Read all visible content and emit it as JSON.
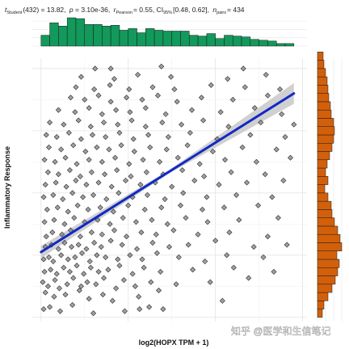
{
  "stats": {
    "t_label": "t",
    "t_sub": "Student",
    "t_value": "(432) = 13.82,",
    "p_label": "p",
    "p_value": "= 3.10e-36,",
    "r_label": "r",
    "r_sub": "Pearson",
    "r_value": "= 0.55, CI",
    "ci_sub": "95%",
    "ci_value": "[0.48, 0.62],",
    "n_label": "n",
    "n_sub": "pairs",
    "n_value": "= 434"
  },
  "watermark": "知乎 @医学和生信笔记",
  "chart_data": {
    "type": "scatter",
    "xlabel": "log2(HOPX TPM + 1)",
    "ylabel": "Inflammatory Response",
    "xlim": [
      -0.1,
      3.05
    ],
    "ylim": [
      -0.62,
      0.65
    ],
    "xticks": [
      "0",
      "1",
      "2",
      "3"
    ],
    "yticks": [
      "-0.6",
      "-0.3",
      "0.0",
      "0.3",
      "0.6"
    ],
    "ytick_values": [
      -0.6,
      -0.3,
      0.0,
      0.3,
      0.6
    ],
    "grid": true,
    "point_color": "#808080",
    "regression": {
      "color": "#1328c4",
      "band_color": "#c8c8c8",
      "x": [
        0.0,
        2.9
      ],
      "y": [
        -0.285,
        0.48
      ],
      "band_half_width": [
        0.03,
        0.008,
        0.05
      ]
    },
    "marginal_x": {
      "type": "histogram",
      "color": "#12995b",
      "yticks": [
        "0",
        "10",
        "20",
        "30"
      ],
      "ytick_values": [
        0,
        10,
        20,
        30
      ],
      "bin_start": 0.0,
      "bin_width": 0.1,
      "counts": [
        13,
        28,
        24,
        34,
        33,
        26,
        26,
        24,
        25,
        19,
        21,
        16,
        21,
        19,
        18,
        18,
        18,
        13,
        12,
        15,
        9,
        13,
        12,
        11,
        8,
        7,
        6,
        3,
        3
      ]
    },
    "marginal_y": {
      "type": "histogram",
      "color": "#d2600b",
      "xticks": [
        "0",
        "10",
        "20",
        "30"
      ],
      "xtick_values": [
        0,
        10,
        20,
        30
      ],
      "bin_start": -0.6,
      "bin_width": 0.04,
      "counts": [
        6,
        8,
        13,
        18,
        22,
        25,
        27,
        24,
        30,
        28,
        25,
        21,
        18,
        17,
        13,
        9,
        13,
        10,
        12,
        15,
        18,
        20,
        21,
        20,
        17,
        16,
        14,
        13,
        12,
        10,
        8,
        7
      ]
    },
    "points": [
      [
        0.03,
        -0.56
      ],
      [
        0.1,
        -0.55
      ],
      [
        0.22,
        -0.57
      ],
      [
        0.36,
        -0.54
      ],
      [
        0.6,
        -0.58
      ],
      [
        0.96,
        -0.57
      ],
      [
        1.13,
        -0.56
      ],
      [
        1.24,
        -0.55
      ],
      [
        1.4,
        -0.56
      ],
      [
        0.05,
        -0.48
      ],
      [
        0.15,
        -0.5
      ],
      [
        0.28,
        -0.49
      ],
      [
        0.44,
        -0.47
      ],
      [
        0.55,
        -0.51
      ],
      [
        0.71,
        -0.49
      ],
      [
        0.82,
        -0.52
      ],
      [
        1.12,
        -0.5
      ],
      [
        1.35,
        -0.47
      ],
      [
        2.08,
        -0.52
      ],
      [
        0.02,
        -0.43
      ],
      [
        0.08,
        -0.45
      ],
      [
        0.16,
        -0.42
      ],
      [
        0.21,
        -0.46
      ],
      [
        0.3,
        -0.44
      ],
      [
        0.37,
        -0.41
      ],
      [
        0.46,
        -0.45
      ],
      [
        0.53,
        -0.43
      ],
      [
        0.63,
        -0.44
      ],
      [
        0.72,
        -0.41
      ],
      [
        0.86,
        -0.46
      ],
      [
        0.95,
        -0.42
      ],
      [
        1.08,
        -0.45
      ],
      [
        1.26,
        -0.43
      ],
      [
        1.55,
        -0.44
      ],
      [
        1.94,
        -0.43
      ],
      [
        2.38,
        -0.41
      ],
      [
        0.04,
        -0.38
      ],
      [
        0.11,
        -0.37
      ],
      [
        0.18,
        -0.39
      ],
      [
        0.26,
        -0.36
      ],
      [
        0.33,
        -0.38
      ],
      [
        0.41,
        -0.35
      ],
      [
        0.49,
        -0.39
      ],
      [
        0.57,
        -0.36
      ],
      [
        0.66,
        -0.38
      ],
      [
        0.77,
        -0.37
      ],
      [
        0.9,
        -0.35
      ],
      [
        1.05,
        -0.39
      ],
      [
        1.18,
        -0.36
      ],
      [
        1.37,
        -0.38
      ],
      [
        1.74,
        -0.37
      ],
      [
        2.21,
        -0.36
      ],
      [
        2.67,
        -0.38
      ],
      [
        0.03,
        -0.32
      ],
      [
        0.09,
        -0.31
      ],
      [
        0.14,
        -0.33
      ],
      [
        0.23,
        -0.3
      ],
      [
        0.31,
        -0.32
      ],
      [
        0.39,
        -0.31
      ],
      [
        0.47,
        -0.29
      ],
      [
        0.56,
        -0.33
      ],
      [
        0.64,
        -0.3
      ],
      [
        0.74,
        -0.31
      ],
      [
        0.88,
        -0.32
      ],
      [
        1.02,
        -0.3
      ],
      [
        1.16,
        -0.32
      ],
      [
        1.33,
        -0.29
      ],
      [
        1.58,
        -0.31
      ],
      [
        1.88,
        -0.33
      ],
      [
        2.13,
        -0.3
      ],
      [
        2.55,
        -0.31
      ],
      [
        0.05,
        -0.26
      ],
      [
        0.12,
        -0.25
      ],
      [
        0.2,
        -0.27
      ],
      [
        0.27,
        -0.24
      ],
      [
        0.35,
        -0.26
      ],
      [
        0.43,
        -0.25
      ],
      [
        0.52,
        -0.27
      ],
      [
        0.61,
        -0.24
      ],
      [
        0.69,
        -0.26
      ],
      [
        0.8,
        -0.23
      ],
      [
        0.93,
        -0.25
      ],
      [
        1.1,
        -0.27
      ],
      [
        1.28,
        -0.24
      ],
      [
        1.47,
        -0.26
      ],
      [
        1.69,
        -0.25
      ],
      [
        2.0,
        -0.23
      ],
      [
        2.44,
        -0.26
      ],
      [
        2.82,
        -0.25
      ],
      [
        0.06,
        -0.21
      ],
      [
        0.13,
        -0.19
      ],
      [
        0.24,
        -0.2
      ],
      [
        0.34,
        -0.18
      ],
      [
        0.45,
        -0.21
      ],
      [
        0.58,
        -0.19
      ],
      [
        0.7,
        -0.2
      ],
      [
        0.84,
        -0.18
      ],
      [
        0.98,
        -0.21
      ],
      [
        1.15,
        -0.19
      ],
      [
        1.32,
        -0.2
      ],
      [
        1.52,
        -0.18
      ],
      [
        1.8,
        -0.2
      ],
      [
        2.16,
        -0.19
      ],
      [
        2.6,
        -0.21
      ],
      [
        0.04,
        -0.14
      ],
      [
        0.15,
        -0.13
      ],
      [
        0.27,
        -0.15
      ],
      [
        0.38,
        -0.12
      ],
      [
        0.5,
        -0.14
      ],
      [
        0.65,
        -0.13
      ],
      [
        0.79,
        -0.15
      ],
      [
        0.94,
        -0.12
      ],
      [
        1.09,
        -0.14
      ],
      [
        1.27,
        -0.13
      ],
      [
        1.45,
        -0.15
      ],
      [
        1.66,
        -0.12
      ],
      [
        1.91,
        -0.14
      ],
      [
        2.27,
        -0.13
      ],
      [
        2.72,
        -0.12
      ],
      [
        0.07,
        -0.08
      ],
      [
        0.19,
        -0.07
      ],
      [
        0.31,
        -0.09
      ],
      [
        0.42,
        -0.06
      ],
      [
        0.54,
        -0.08
      ],
      [
        0.68,
        -0.07
      ],
      [
        0.83,
        -0.09
      ],
      [
        1.0,
        -0.06
      ],
      [
        1.19,
        -0.08
      ],
      [
        1.38,
        -0.07
      ],
      [
        1.6,
        -0.06
      ],
      [
        1.85,
        -0.08
      ],
      [
        2.1,
        -0.07
      ],
      [
        2.49,
        -0.06
      ],
      [
        0.03,
        -0.02
      ],
      [
        0.14,
        -0.01
      ],
      [
        0.25,
        -0.03
      ],
      [
        0.36,
        0.0
      ],
      [
        0.48,
        -0.02
      ],
      [
        0.6,
        -0.01
      ],
      [
        0.75,
        -0.03
      ],
      [
        0.89,
        0.0
      ],
      [
        1.05,
        -0.02
      ],
      [
        1.22,
        -0.01
      ],
      [
        1.42,
        -0.03
      ],
      [
        1.63,
        0.0
      ],
      [
        1.9,
        -0.02
      ],
      [
        2.24,
        -0.01
      ],
      [
        2.65,
        -0.02
      ],
      [
        0.05,
        0.04
      ],
      [
        0.17,
        0.05
      ],
      [
        0.29,
        0.03
      ],
      [
        0.4,
        0.06
      ],
      [
        0.52,
        0.04
      ],
      [
        0.66,
        0.05
      ],
      [
        0.81,
        0.03
      ],
      [
        0.97,
        0.06
      ],
      [
        1.14,
        0.04
      ],
      [
        1.31,
        0.05
      ],
      [
        1.5,
        0.03
      ],
      [
        1.76,
        0.06
      ],
      [
        2.04,
        0.04
      ],
      [
        2.36,
        0.05
      ],
      [
        2.78,
        0.06
      ],
      [
        0.08,
        0.1
      ],
      [
        0.2,
        0.09
      ],
      [
        0.33,
        0.11
      ],
      [
        0.45,
        0.08
      ],
      [
        0.58,
        0.1
      ],
      [
        0.73,
        0.09
      ],
      [
        0.87,
        0.11
      ],
      [
        1.03,
        0.08
      ],
      [
        1.21,
        0.1
      ],
      [
        1.4,
        0.09
      ],
      [
        1.62,
        0.11
      ],
      [
        1.87,
        0.08
      ],
      [
        2.18,
        0.1
      ],
      [
        2.57,
        0.09
      ],
      [
        0.04,
        0.16
      ],
      [
        0.16,
        0.15
      ],
      [
        0.28,
        0.17
      ],
      [
        0.41,
        0.14
      ],
      [
        0.55,
        0.16
      ],
      [
        0.7,
        0.15
      ],
      [
        0.85,
        0.17
      ],
      [
        1.01,
        0.14
      ],
      [
        1.17,
        0.16
      ],
      [
        1.36,
        0.15
      ],
      [
        1.57,
        0.17
      ],
      [
        1.82,
        0.14
      ],
      [
        2.11,
        0.16
      ],
      [
        2.47,
        0.15
      ],
      [
        2.86,
        0.17
      ],
      [
        0.09,
        0.22
      ],
      [
        0.23,
        0.21
      ],
      [
        0.37,
        0.23
      ],
      [
        0.51,
        0.2
      ],
      [
        0.64,
        0.22
      ],
      [
        0.78,
        0.21
      ],
      [
        0.92,
        0.23
      ],
      [
        1.07,
        0.2
      ],
      [
        1.25,
        0.22
      ],
      [
        1.44,
        0.21
      ],
      [
        1.68,
        0.23
      ],
      [
        1.97,
        0.2
      ],
      [
        2.31,
        0.22
      ],
      [
        2.7,
        0.21
      ],
      [
        0.06,
        0.28
      ],
      [
        0.18,
        0.27
      ],
      [
        0.32,
        0.29
      ],
      [
        0.46,
        0.26
      ],
      [
        0.59,
        0.28
      ],
      [
        0.74,
        0.27
      ],
      [
        0.9,
        0.29
      ],
      [
        1.06,
        0.26
      ],
      [
        1.23,
        0.28
      ],
      [
        1.46,
        0.27
      ],
      [
        1.71,
        0.29
      ],
      [
        2.02,
        0.26
      ],
      [
        2.4,
        0.28
      ],
      [
        2.8,
        0.27
      ],
      [
        0.1,
        0.34
      ],
      [
        0.26,
        0.33
      ],
      [
        0.43,
        0.35
      ],
      [
        0.57,
        0.32
      ],
      [
        0.72,
        0.34
      ],
      [
        0.88,
        0.33
      ],
      [
        1.04,
        0.35
      ],
      [
        1.2,
        0.32
      ],
      [
        1.39,
        0.34
      ],
      [
        1.61,
        0.33
      ],
      [
        1.86,
        0.35
      ],
      [
        2.15,
        0.32
      ],
      [
        2.52,
        0.34
      ],
      [
        2.9,
        0.33
      ],
      [
        0.2,
        0.4
      ],
      [
        0.39,
        0.39
      ],
      [
        0.55,
        0.41
      ],
      [
        0.7,
        0.38
      ],
      [
        0.86,
        0.4
      ],
      [
        1.02,
        0.39
      ],
      [
        1.2,
        0.41
      ],
      [
        1.43,
        0.38
      ],
      [
        1.73,
        0.4
      ],
      [
        2.06,
        0.39
      ],
      [
        2.45,
        0.41
      ],
      [
        2.76,
        0.38
      ],
      [
        0.34,
        0.46
      ],
      [
        0.5,
        0.45
      ],
      [
        0.66,
        0.47
      ],
      [
        0.8,
        0.44
      ],
      [
        0.98,
        0.46
      ],
      [
        1.16,
        0.45
      ],
      [
        1.34,
        0.47
      ],
      [
        1.56,
        0.44
      ],
      [
        1.84,
        0.46
      ],
      [
        2.2,
        0.45
      ],
      [
        2.6,
        0.47
      ],
      [
        0.4,
        0.51
      ],
      [
        0.61,
        0.5
      ],
      [
        0.79,
        0.52
      ],
      [
        1.01,
        0.5
      ],
      [
        1.28,
        0.51
      ],
      [
        1.53,
        0.5
      ],
      [
        1.95,
        0.52
      ],
      [
        2.34,
        0.51
      ],
      [
        2.74,
        0.5
      ],
      [
        0.46,
        0.56
      ],
      [
        0.84,
        0.55
      ],
      [
        1.11,
        0.57
      ],
      [
        1.49,
        0.56
      ],
      [
        2.14,
        0.55
      ],
      [
        2.58,
        0.57
      ],
      [
        0.62,
        0.6
      ],
      [
        0.8,
        0.6
      ],
      [
        1.38,
        0.61
      ],
      [
        2.32,
        0.6
      ]
    ]
  }
}
